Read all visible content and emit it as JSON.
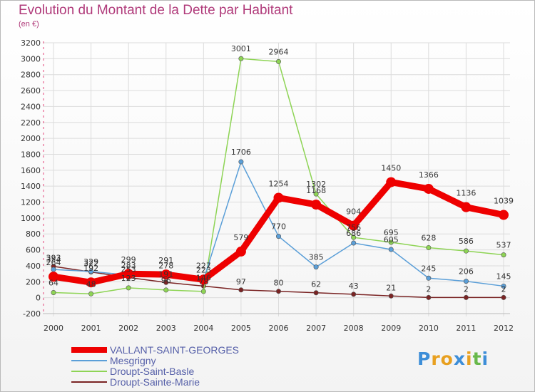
{
  "chart_data": {
    "type": "line",
    "title": "Evolution du Montant de la Dette par Habitant",
    "subtitle": "(en €)",
    "x": [
      "2000",
      "2001",
      "2002",
      "2003",
      "2004",
      "2005",
      "2006",
      "2007",
      "2008",
      "2009",
      "2010",
      "2011",
      "2012"
    ],
    "ylim": [
      -200,
      3200
    ],
    "yticks": [
      -200,
      0,
      200,
      400,
      600,
      800,
      1000,
      1200,
      1400,
      1600,
      1800,
      2000,
      2200,
      2400,
      2600,
      2800,
      3000,
      3200
    ],
    "grid": true,
    "legend_position": "bottom-left",
    "series": [
      {
        "name": "Droupt-Sainte-Marie",
        "color": "#7a2424",
        "values": [
          393,
          322,
          253,
          191,
          146,
          97,
          80,
          62,
          43,
          21,
          2,
          2,
          2
        ],
        "labels": [
          "393",
          "322",
          "253",
          "191",
          "146",
          "97",
          "80",
          "62",
          "43",
          "21",
          "2",
          "2",
          "2"
        ]
      },
      {
        "name": "Droupt-Saint-Basle",
        "color": "#8ed455",
        "values": [
          64,
          48,
          123,
          96,
          78,
          3001,
          2964,
          1302,
          756,
          695,
          628,
          586,
          537
        ],
        "labels": [
          "64",
          "48",
          "123",
          "96",
          "78",
          "3001",
          "2964",
          "1302",
          "756",
          "695",
          "628",
          "586",
          "537"
        ]
      },
      {
        "name": "Mesgrigny",
        "color": "#5b9fd8",
        "values": [
          354,
          329,
          283,
          278,
          223,
          1706,
          770,
          385,
          686,
          605,
          245,
          206,
          145
        ],
        "labels": [
          "354",
          "329",
          "283",
          "278",
          "223",
          "1706",
          "770",
          "385",
          "686",
          "605",
          "245",
          "206",
          "145"
        ]
      },
      {
        "name": "VALLANT-SAINT-GEORGES",
        "color": "#ee0000",
        "values": [
          264,
          192,
          299,
          291,
          227,
          579,
          1254,
          1168,
          904,
          1450,
          1366,
          1136,
          1039
        ],
        "labels": [
          "264",
          "192",
          "299",
          "291",
          "227",
          "579",
          "1254",
          "1168",
          "904",
          "1450",
          "1366",
          "1136",
          "1039"
        ]
      }
    ],
    "legend_order": [
      "VALLANT-SAINT-GEORGES",
      "Mesgrigny",
      "Droupt-Saint-Basle",
      "Droupt-Sainte-Marie"
    ]
  },
  "logo": {
    "letters": [
      "P",
      "r",
      "o",
      "x",
      "i",
      "t",
      "i"
    ],
    "colors": [
      "#3d8ed8",
      "#e8a020",
      "#e8a020",
      "#3d8ed8",
      "#e8a020",
      "#68b84a",
      "#3d8ed8"
    ]
  }
}
